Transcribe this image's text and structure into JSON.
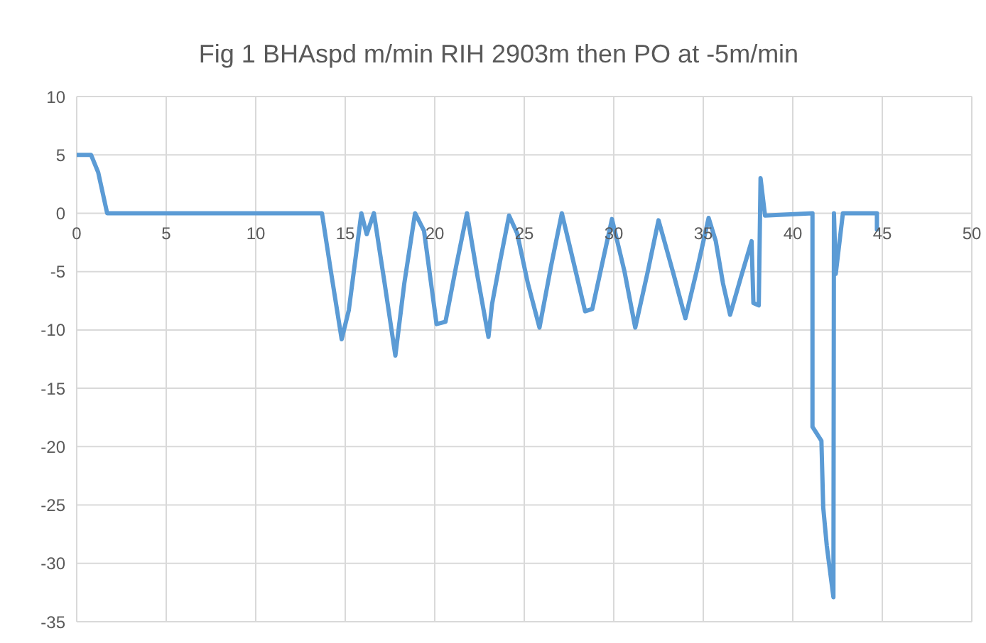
{
  "chart_data": {
    "type": "line",
    "title": "Fig 1 BHAspd m/min RIH 2903m then PO at -5m/min",
    "xlim": [
      0,
      50
    ],
    "xticks": [
      0,
      5,
      10,
      15,
      20,
      25,
      30,
      35,
      40,
      45,
      50
    ],
    "ylim": [
      -35,
      10
    ],
    "yticks": [
      -35,
      -30,
      -25,
      -20,
      -15,
      -10,
      -5,
      0,
      5,
      10
    ],
    "grid": true,
    "marker": "none",
    "line_style": "solid",
    "series": [
      {
        "color": "#5b9bd5",
        "x": [
          0,
          0.8,
          1.2,
          1.7,
          13.7,
          14.2,
          14.8,
          15.2,
          15.9,
          16.2,
          16.6,
          17.2,
          17.8,
          18.3,
          18.9,
          19.4,
          20.1,
          20.6,
          21.2,
          21.8,
          22.4,
          23.0,
          23.2,
          23.6,
          24.15,
          24.6,
          25.2,
          25.85,
          26.5,
          27.1,
          27.8,
          28.4,
          28.8,
          29.4,
          29.9,
          30.6,
          31.2,
          31.9,
          32.5,
          33.3,
          34.0,
          34.7,
          35.3,
          35.7,
          36.1,
          36.5,
          37.1,
          37.7,
          37.8,
          38.1,
          38.2,
          38.45,
          41.1,
          41.1,
          41.6,
          41.7,
          41.9,
          42.27,
          42.3,
          42.4,
          42.8,
          44.7,
          44.7
        ],
        "values": [
          5,
          5,
          3.5,
          0,
          0,
          -5,
          -10.8,
          -8.3,
          0,
          -1.8,
          0,
          -6,
          -12.2,
          -6,
          0,
          -1.5,
          -9.5,
          -9.3,
          -4.5,
          0,
          -5.5,
          -10.6,
          -7.8,
          -4.5,
          -0.2,
          -1.7,
          -6,
          -9.8,
          -4.5,
          0,
          -4.5,
          -8.4,
          -8.2,
          -4,
          -0.5,
          -5,
          -9.8,
          -5,
          -0.6,
          -5,
          -9,
          -4.5,
          -0.4,
          -2.4,
          -6,
          -8.7,
          -5.5,
          -2.4,
          -7.7,
          -7.9,
          3,
          -0.2,
          0,
          -18.3,
          -19.5,
          -25.2,
          -28.5,
          -32.9,
          0,
          -5.2,
          0,
          0,
          -1.4
        ]
      }
    ]
  }
}
